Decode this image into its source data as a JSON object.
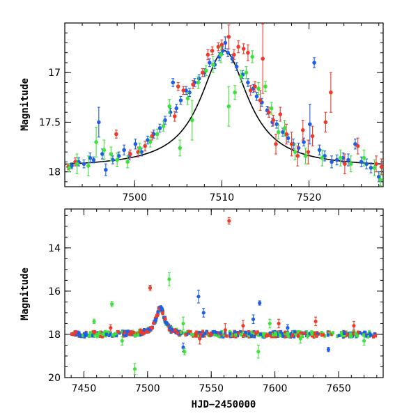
{
  "colors": {
    "blue": "#1f5fe6",
    "red": "#ee3a2a",
    "green": "#3ee23a",
    "model": "#000000"
  },
  "chart_data": [
    {
      "type": "scatter",
      "title": "",
      "xlabel": "",
      "ylabel": "Magnitude",
      "xlim": [
        7492,
        7528.5
      ],
      "ylim": [
        18.15,
        16.5
      ],
      "y_inverted": true,
      "xticks_major": [
        7500,
        7510,
        7520
      ],
      "xtick_labels": [
        "7500",
        "7510",
        "7520"
      ],
      "yticks_major": [
        17,
        17.5,
        18
      ],
      "ytick_labels": [
        "17",
        "17.5",
        "18"
      ],
      "model_curve": {
        "peak_x": 7510.3,
        "peak_y": 16.78,
        "baseline_y": 17.96,
        "width_days": 4.2
      },
      "series": [
        {
          "color": "blue",
          "points": [
            [
              7492.8,
              17.94,
              0.03
            ],
            [
              7493.6,
              17.9,
              0.04
            ],
            [
              7494.2,
              17.92,
              0.04
            ],
            [
              7494.9,
              17.86,
              0.05
            ],
            [
              7495.3,
              17.88,
              0.03
            ],
            [
              7495.9,
              17.5,
              0.15
            ],
            [
              7496.3,
              17.82,
              0.05
            ],
            [
              7496.7,
              17.98,
              0.06
            ],
            [
              7497.5,
              17.88,
              0.04
            ],
            [
              7498.2,
              17.84,
              0.04
            ],
            [
              7498.8,
              17.78,
              0.05
            ],
            [
              7499.4,
              17.84,
              0.04
            ],
            [
              7500.1,
              17.72,
              0.05
            ],
            [
              7500.8,
              17.8,
              0.04
            ],
            [
              7501.5,
              17.68,
              0.04
            ],
            [
              7502.2,
              17.62,
              0.04
            ],
            [
              7502.9,
              17.56,
              0.04
            ],
            [
              7503.5,
              17.48,
              0.04
            ],
            [
              7504.1,
              17.4,
              0.04
            ],
            [
              7504.4,
              17.1,
              0.04
            ],
            [
              7504.8,
              17.36,
              0.04
            ],
            [
              7505.3,
              17.28,
              0.04
            ],
            [
              7505.9,
              17.18,
              0.04
            ],
            [
              7506.3,
              17.2,
              0.04
            ],
            [
              7506.9,
              17.1,
              0.04
            ],
            [
              7507.4,
              17.06,
              0.04
            ],
            [
              7508.0,
              17.0,
              0.04
            ],
            [
              7508.6,
              16.9,
              0.04
            ],
            [
              7509.2,
              16.92,
              0.04
            ],
            [
              7509.7,
              16.84,
              0.04
            ],
            [
              7510.1,
              16.78,
              0.04
            ],
            [
              7510.4,
              16.7,
              0.06
            ],
            [
              7510.7,
              16.8,
              0.04
            ],
            [
              7511.2,
              16.86,
              0.04
            ],
            [
              7511.7,
              16.94,
              0.04
            ],
            [
              7512.4,
              17.02,
              0.04
            ],
            [
              7513.0,
              17.1,
              0.04
            ],
            [
              7513.6,
              17.16,
              0.04
            ],
            [
              7514.0,
              17.24,
              0.04
            ],
            [
              7514.6,
              17.3,
              0.04
            ],
            [
              7515.2,
              17.38,
              0.04
            ],
            [
              7515.8,
              17.5,
              0.04
            ],
            [
              7516.3,
              17.52,
              0.04
            ],
            [
              7517.0,
              17.6,
              0.04
            ],
            [
              7517.6,
              17.66,
              0.04
            ],
            [
              7518.2,
              17.72,
              0.05
            ],
            [
              7518.8,
              17.76,
              0.05
            ],
            [
              7519.4,
              17.7,
              0.04
            ],
            [
              7520.1,
              17.52,
              0.2
            ],
            [
              7520.6,
              16.9,
              0.05
            ],
            [
              7521.2,
              17.78,
              0.05
            ],
            [
              7521.8,
              17.84,
              0.05
            ],
            [
              7522.6,
              17.9,
              0.06
            ],
            [
              7523.2,
              17.88,
              0.05
            ],
            [
              7523.9,
              17.86,
              0.05
            ],
            [
              7524.5,
              17.88,
              0.06
            ],
            [
              7525.3,
              17.72,
              0.05
            ],
            [
              7526.0,
              17.9,
              0.05
            ],
            [
              7526.6,
              17.92,
              0.05
            ],
            [
              7527.1,
              17.96,
              0.05
            ],
            [
              7528.0,
              18.05,
              0.05
            ]
          ]
        },
        {
          "color": "red",
          "points": [
            [
              7492.4,
              17.95,
              0.03
            ],
            [
              7493.2,
              17.9,
              0.04
            ],
            [
              7497.9,
              17.62,
              0.04
            ],
            [
              7499.5,
              17.82,
              0.04
            ],
            [
              7500.4,
              17.8,
              0.05
            ],
            [
              7501.2,
              17.74,
              0.05
            ],
            [
              7502.0,
              17.64,
              0.04
            ],
            [
              7504.6,
              17.44,
              0.05
            ],
            [
              7505.0,
              17.14,
              0.04
            ],
            [
              7505.6,
              17.18,
              0.04
            ],
            [
              7506.7,
              17.12,
              0.04
            ],
            [
              7507.8,
              17.0,
              0.04
            ],
            [
              7508.4,
              16.82,
              0.05
            ],
            [
              7508.9,
              16.78,
              0.04
            ],
            [
              7509.6,
              16.74,
              0.04
            ],
            [
              7510.0,
              16.72,
              0.05
            ],
            [
              7510.8,
              16.64,
              0.12
            ],
            [
              7511.4,
              16.82,
              0.05
            ],
            [
              7511.9,
              16.74,
              0.06
            ],
            [
              7512.5,
              16.76,
              0.05
            ],
            [
              7513.0,
              16.8,
              0.08
            ],
            [
              7513.3,
              17.18,
              0.05
            ],
            [
              7513.8,
              17.14,
              0.05
            ],
            [
              7514.4,
              17.28,
              0.1
            ],
            [
              7514.7,
              16.86,
              0.35
            ],
            [
              7515.4,
              17.4,
              0.05
            ],
            [
              7515.9,
              17.48,
              0.05
            ],
            [
              7516.2,
              17.72,
              0.1
            ],
            [
              7516.7,
              17.42,
              0.07
            ],
            [
              7517.4,
              17.62,
              0.1
            ],
            [
              7518.0,
              17.72,
              0.12
            ],
            [
              7518.7,
              17.84,
              0.1
            ],
            [
              7519.3,
              17.58,
              0.1
            ],
            [
              7519.9,
              17.8,
              0.12
            ],
            [
              7520.4,
              17.64,
              0.1
            ],
            [
              7521.9,
              17.5,
              0.1
            ],
            [
              7522.5,
              17.2,
              0.2
            ],
            [
              7524.1,
              17.92,
              0.1
            ],
            [
              7525.6,
              17.74,
              0.08
            ],
            [
              7527.7,
              17.92,
              0.08
            ],
            [
              7528.3,
              17.95,
              0.08
            ]
          ]
        },
        {
          "color": "green",
          "points": [
            [
              7492.5,
              17.96,
              0.04
            ],
            [
              7493.4,
              17.92,
              0.1
            ],
            [
              7494.7,
              17.94,
              0.1
            ],
            [
              7495.6,
              17.7,
              0.15
            ],
            [
              7496.5,
              17.78,
              0.1
            ],
            [
              7497.3,
              17.82,
              0.07
            ],
            [
              7498.0,
              17.88,
              0.07
            ],
            [
              7499.2,
              17.9,
              0.06
            ],
            [
              7500.6,
              17.76,
              0.05
            ],
            [
              7501.8,
              17.7,
              0.05
            ],
            [
              7502.6,
              17.62,
              0.05
            ],
            [
              7503.3,
              17.54,
              0.05
            ],
            [
              7504.0,
              17.34,
              0.07
            ],
            [
              7505.2,
              17.76,
              0.08
            ],
            [
              7506.1,
              17.26,
              0.06
            ],
            [
              7506.6,
              17.48,
              0.2
            ],
            [
              7507.3,
              17.1,
              0.06
            ],
            [
              7508.2,
              16.98,
              0.05
            ],
            [
              7509.0,
              16.92,
              0.08
            ],
            [
              7509.9,
              16.82,
              0.08
            ],
            [
              7510.8,
              17.34,
              0.2
            ],
            [
              7511.5,
              17.2,
              0.07
            ],
            [
              7512.2,
              17.04,
              0.06
            ],
            [
              7512.8,
              17.0,
              0.06
            ],
            [
              7513.5,
              16.84,
              0.06
            ],
            [
              7514.2,
              17.16,
              0.06
            ],
            [
              7515.0,
              17.14,
              0.05
            ],
            [
              7515.7,
              17.36,
              0.06
            ],
            [
              7516.5,
              17.6,
              0.07
            ],
            [
              7517.2,
              17.56,
              0.08
            ],
            [
              7518.4,
              17.8,
              0.08
            ],
            [
              7519.6,
              17.84,
              0.08
            ],
            [
              7521.5,
              17.86,
              0.08
            ],
            [
              7523.6,
              17.86,
              0.08
            ],
            [
              7524.8,
              17.92,
              0.08
            ],
            [
              7526.3,
              17.86,
              0.08
            ],
            [
              7527.5,
              17.96,
              0.08
            ],
            [
              7528.2,
              18.08,
              0.06
            ]
          ]
        }
      ]
    },
    {
      "type": "scatter",
      "title": "",
      "xlabel": "HJD−2450000",
      "ylabel": "Magnitude",
      "xlim": [
        7435,
        7685
      ],
      "ylim": [
        20,
        12.2
      ],
      "y_inverted": true,
      "xticks_major": [
        7450,
        7500,
        7550,
        7600,
        7650
      ],
      "xtick_labels": [
        "7450",
        "7500",
        "7550",
        "7600",
        "7650"
      ],
      "yticks_major": [
        14,
        16,
        18,
        20
      ],
      "ytick_labels": [
        "14",
        "16",
        "18",
        "20"
      ],
      "baseline_band": {
        "x_start": 7440,
        "x_end": 7680,
        "y": 18.0,
        "scatter": 0.12
      },
      "peak_event": {
        "x": 7510,
        "y": 16.75
      },
      "series": [
        {
          "color": "red",
          "outliers": [
            [
              7564,
              12.75,
              0.15
            ],
            [
              7502,
              15.85,
              0.12
            ],
            [
              7471,
              17.7,
              0.15
            ],
            [
              7541,
              18.2,
              0.25
            ],
            [
              7561,
              17.8,
              0.3
            ],
            [
              7575,
              17.6,
              0.25
            ],
            [
              7603,
              17.5,
              0.2
            ],
            [
              7632,
              17.4,
              0.2
            ],
            [
              7662,
              17.6,
              0.2
            ]
          ]
        },
        {
          "color": "blue",
          "outliers": [
            [
              7540,
              16.25,
              0.3
            ],
            [
              7588,
              16.55,
              0.1
            ],
            [
              7544,
              17.0,
              0.2
            ],
            [
              7583,
              17.3,
              0.2
            ],
            [
              7642,
              18.7,
              0.1
            ],
            [
              7528,
              18.6,
              0.2
            ],
            [
              7610,
              17.7,
              0.15
            ]
          ]
        },
        {
          "color": "green",
          "outliers": [
            [
              7472,
              16.6,
              0.12
            ],
            [
              7490,
              19.6,
              0.25
            ],
            [
              7517,
              15.45,
              0.3
            ],
            [
              7587,
              18.8,
              0.3
            ],
            [
              7528,
              17.5,
              0.3
            ],
            [
              7458,
              17.4,
              0.1
            ],
            [
              7480,
              18.3,
              0.2
            ],
            [
              7529,
              18.8,
              0.15
            ],
            [
              7596,
              17.5,
              0.2
            ],
            [
              7620,
              18.2,
              0.2
            ],
            [
              7670,
              18.3,
              0.2
            ]
          ]
        }
      ]
    }
  ]
}
